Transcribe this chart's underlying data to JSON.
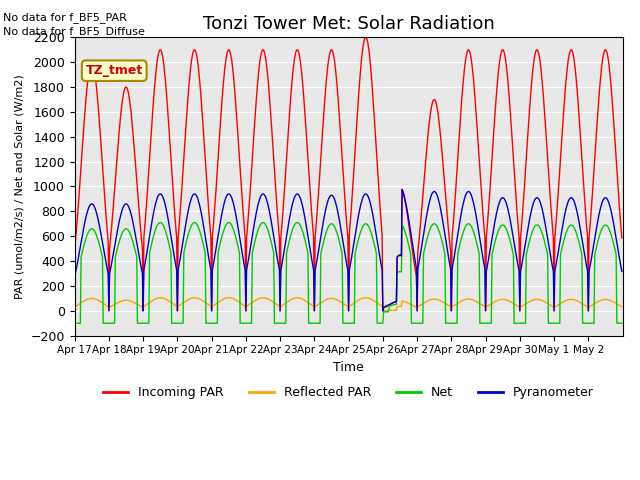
{
  "title": "Tonzi Tower Met: Solar Radiation",
  "ylabel": "PAR (umol/m2/s) / Net and Solar (W/m2)",
  "xlabel": "Time",
  "ylim": [
    -200,
    2200
  ],
  "yticks": [
    -200,
    0,
    200,
    400,
    600,
    800,
    1000,
    1200,
    1400,
    1600,
    1800,
    2000,
    2200
  ],
  "xtick_labels": [
    "Apr 17",
    "Apr 18",
    "Apr 19",
    "Apr 20",
    "Apr 21",
    "Apr 22",
    "Apr 23",
    "Apr 24",
    "Apr 25",
    "Apr 26",
    "Apr 27",
    "Apr 28",
    "Apr 29",
    "Apr 30",
    "May 1",
    "May 2"
  ],
  "legend_entries": [
    "Incoming PAR",
    "Reflected PAR",
    "Net",
    "Pyranometer"
  ],
  "legend_colors": [
    "#ff0000",
    "#ffa500",
    "#00cc00",
    "#0000cc"
  ],
  "line_colors": {
    "incoming": "#ff0000",
    "reflected": "#ffa500",
    "net": "#00cc00",
    "pyranometer": "#0000cc"
  },
  "annotation_lines": [
    "No data for f_BF5_PAR",
    "No data for f_BF5_Diffuse"
  ],
  "station_label": "TZ_tmet",
  "station_label_color": "#cc0000",
  "station_label_bg": "#ffffcc",
  "background_color": "#e8e8e8",
  "title_fontsize": 13,
  "n_days": 16,
  "day_peaks_incoming": [
    2000,
    1800,
    2100,
    2100,
    2100,
    2100,
    2100,
    2100,
    2200,
    1000,
    1700,
    2100,
    2100,
    2100,
    2100,
    2100
  ],
  "day_peaks_pyranometer": [
    860,
    860,
    940,
    940,
    940,
    940,
    940,
    930,
    940,
    990,
    960,
    960,
    910,
    910,
    910,
    910
  ],
  "day_peaks_net": [
    660,
    660,
    710,
    710,
    710,
    710,
    710,
    700,
    700,
    700,
    700,
    700,
    690,
    690,
    690,
    690
  ],
  "day_peaks_reflected": [
    100,
    85,
    105,
    105,
    105,
    105,
    105,
    100,
    105,
    80,
    95,
    95,
    92,
    92,
    92,
    92
  ],
  "net_negative_base": -100,
  "cloudy_day_index": 9
}
